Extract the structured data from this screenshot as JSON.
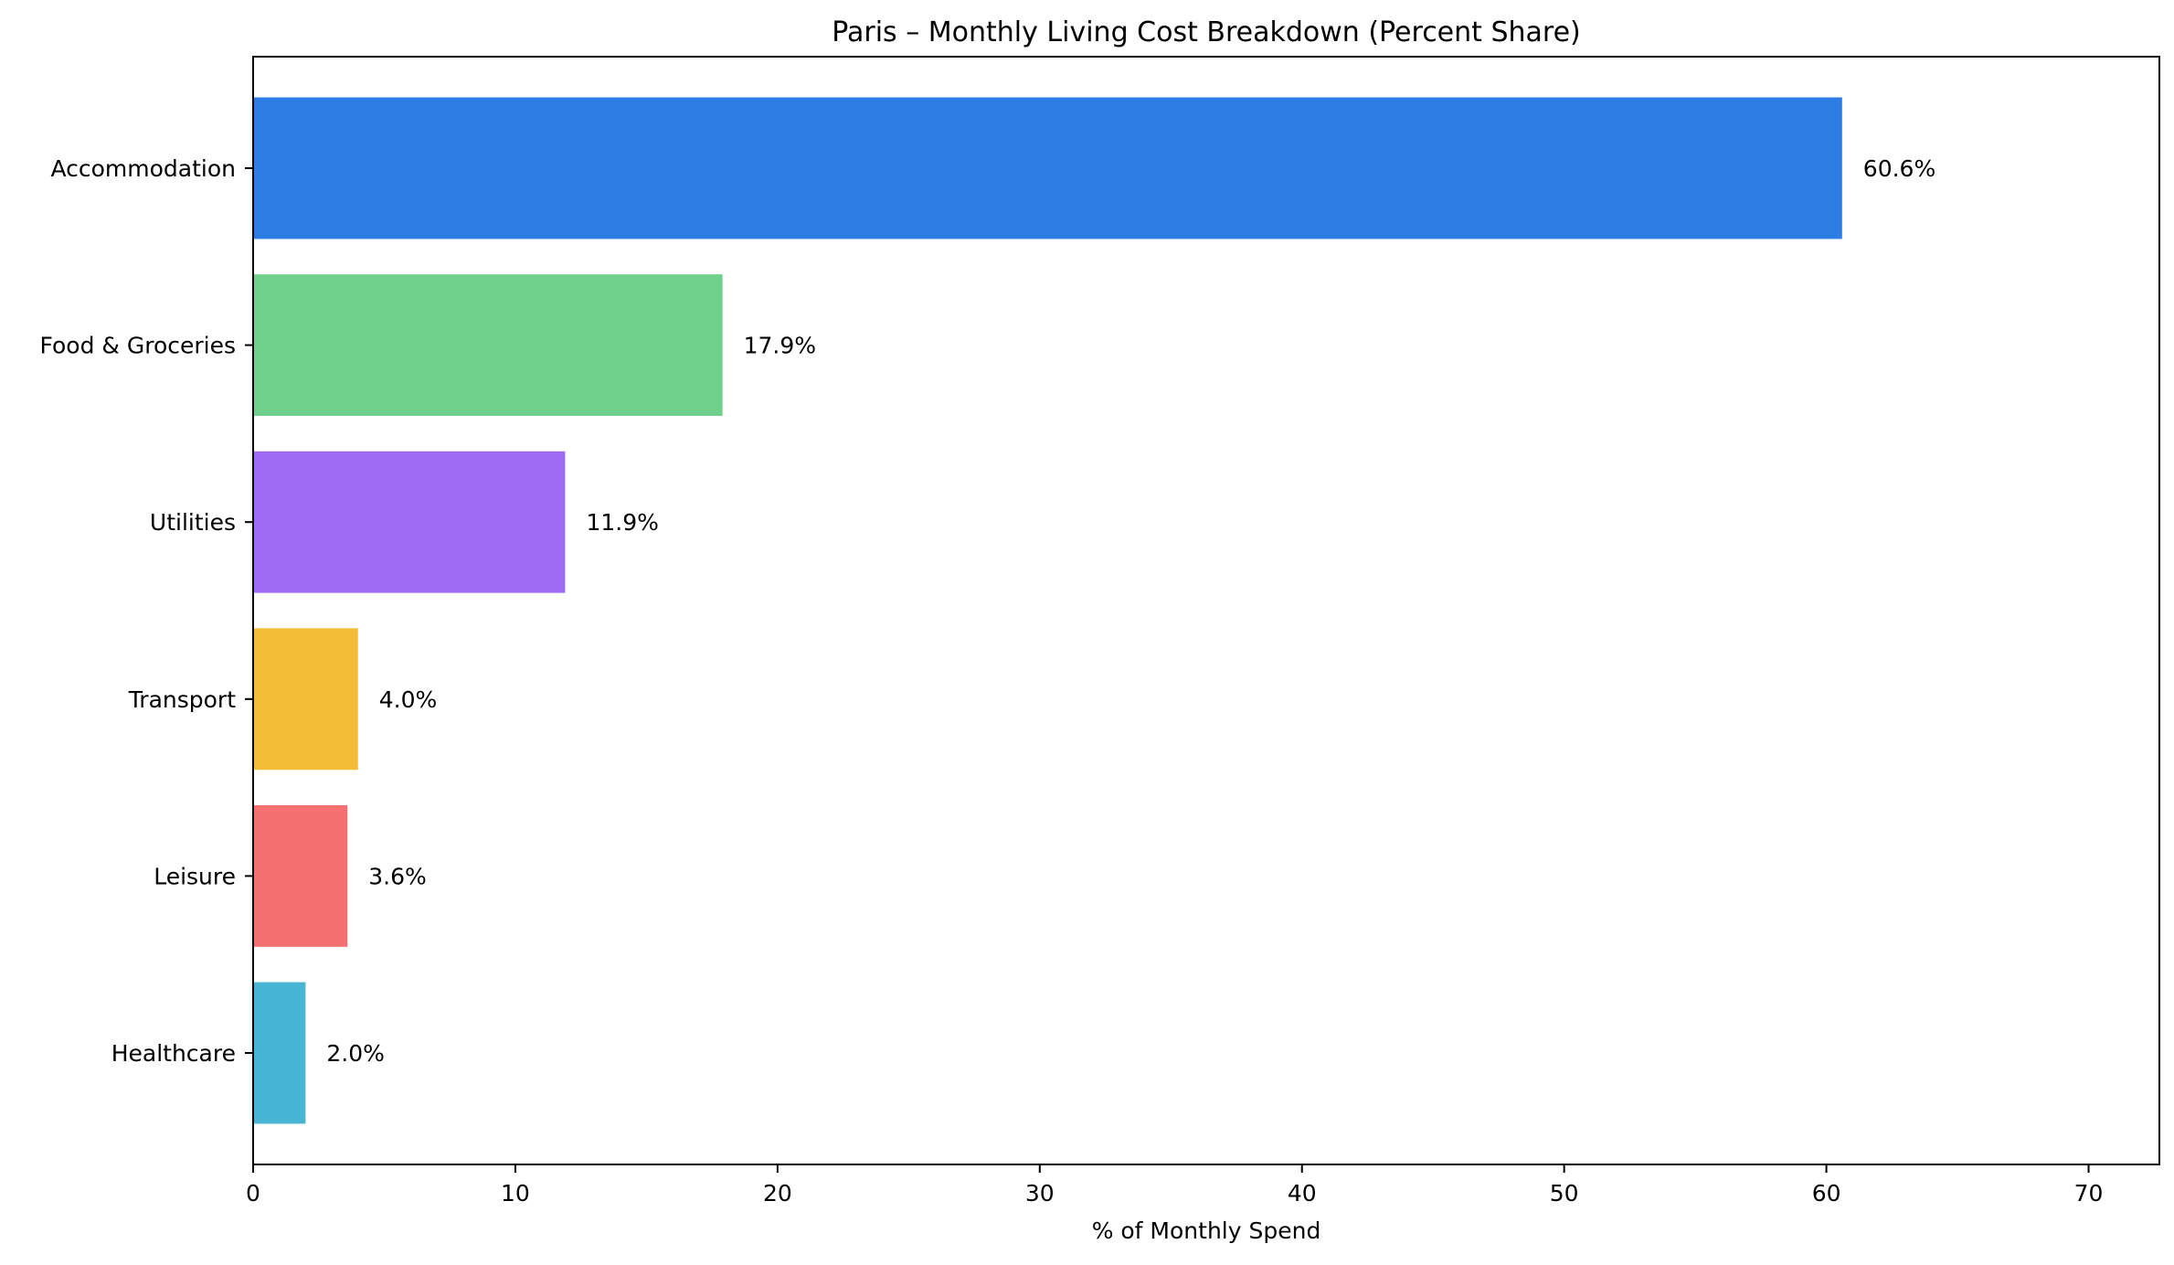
{
  "chart_data": {
    "type": "bar",
    "orientation": "horizontal",
    "title": "Paris – Monthly Living Cost Breakdown (Percent Share)",
    "xlabel": "% of Monthly Spend",
    "ylabel": "",
    "xlim": [
      0,
      72.7
    ],
    "xticks": [
      0,
      10,
      20,
      30,
      40,
      50,
      60,
      70
    ],
    "categories": [
      "Accommodation",
      "Food & Groceries",
      "Utilities",
      "Transport",
      "Leisure",
      "Healthcare"
    ],
    "values": [
      60.6,
      17.9,
      11.9,
      4.0,
      3.6,
      2.0
    ],
    "value_labels": [
      "60.6%",
      "17.9%",
      "11.9%",
      "4.0%",
      "3.6%",
      "2.0%"
    ],
    "colors": [
      "#2d7de5",
      "#6fd18b",
      "#9f6bf5",
      "#f4bd37",
      "#f57070",
      "#47b5d4"
    ],
    "grid": false,
    "legend": "none"
  }
}
